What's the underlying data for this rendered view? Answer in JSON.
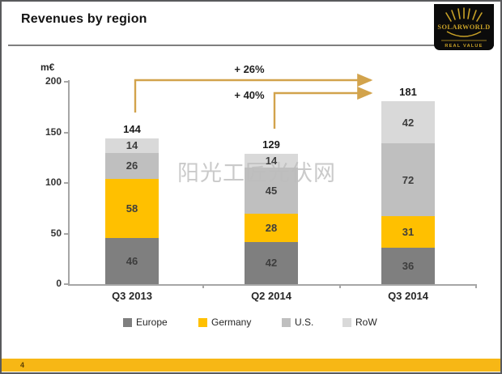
{
  "header": {
    "title": "Revenues by region"
  },
  "logo": {
    "brand": "SOLARWORLD",
    "tagline": "REAL VALUE"
  },
  "watermark": "阳光工匠光伏网",
  "footer": {
    "page_number": "4"
  },
  "chart_data": {
    "type": "bar",
    "stacked": true,
    "title": "Revenues by region",
    "unit_label": "m€",
    "categories": [
      "Q3 2013",
      "Q2 2014",
      "Q3 2014"
    ],
    "series": [
      {
        "name": "Europe",
        "color": "#7f7f7f",
        "values": [
          46,
          42,
          36
        ]
      },
      {
        "name": "Germany",
        "color": "#ffc000",
        "values": [
          58,
          28,
          31
        ]
      },
      {
        "name": "U.S.",
        "color": "#bfbfbf",
        "values": [
          26,
          45,
          72
        ]
      },
      {
        "name": "RoW",
        "color": "#d9d9d9",
        "values": [
          14,
          14,
          42
        ]
      }
    ],
    "totals": [
      144,
      129,
      181
    ],
    "ylim": [
      0,
      200
    ],
    "yticks": [
      0,
      50,
      100,
      150,
      200
    ],
    "grid": false,
    "legend_position": "bottom",
    "annotation_color": "#d2a34c",
    "annotations": [
      {
        "label": "+ 26%",
        "from_category": "Q3 2013",
        "to_category": "Q3 2014"
      },
      {
        "label": "+ 40%",
        "from_category": "Q2 2014",
        "to_category": "Q3 2014"
      }
    ]
  }
}
